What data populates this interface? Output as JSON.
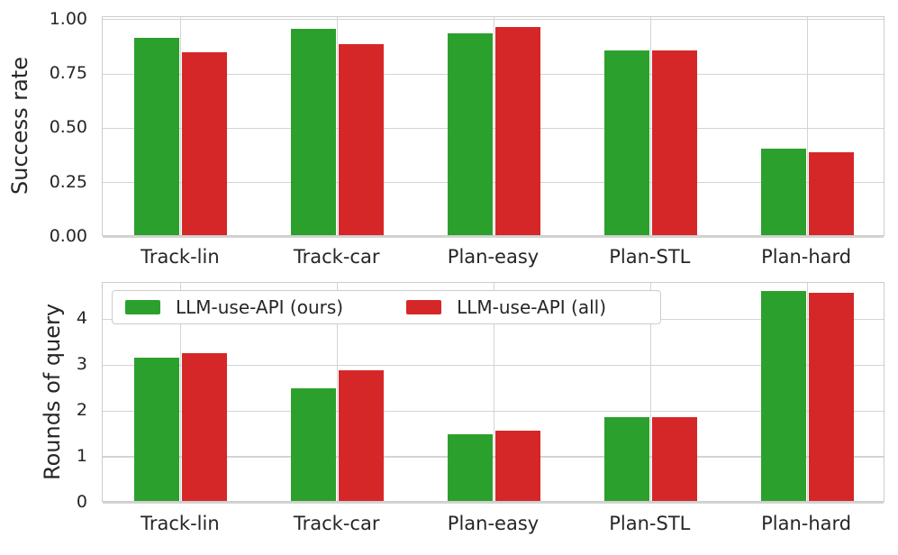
{
  "figure": {
    "background": "#ffffff",
    "text_color": "#262626",
    "grid_color": "#d4d4d4",
    "spine_color": "#cccccc",
    "accent_green": "#2ca02c",
    "accent_red": "#d62728"
  },
  "legend": {
    "items": [
      {
        "label": "LLM-use-API (ours)",
        "color": "#2ca02c"
      },
      {
        "label": "LLM-use-API (all)",
        "color": "#d62728"
      }
    ],
    "position": "upper left of bottom chart, horizontal 2 columns"
  },
  "chart_data": [
    {
      "type": "bar",
      "title": "",
      "xlabel": "",
      "ylabel": "Success rate",
      "categories": [
        "Track-lin",
        "Track-car",
        "Plan-easy",
        "Plan-STL",
        "Plan-hard"
      ],
      "series": [
        {
          "name": "LLM-use-API (ours)",
          "color": "#2ca02c",
          "values": [
            0.91,
            0.95,
            0.93,
            0.85,
            0.4
          ]
        },
        {
          "name": "LLM-use-API (all)",
          "color": "#d62728",
          "values": [
            0.84,
            0.88,
            0.96,
            0.85,
            0.38
          ]
        }
      ],
      "ylim": [
        0,
        1.012
      ],
      "yticks": [
        {
          "value": 0,
          "label": "0.00"
        },
        {
          "value": 0.25,
          "label": "0.25"
        },
        {
          "value": 0.5,
          "label": "0.50"
        },
        {
          "value": 0.75,
          "label": "0.75"
        },
        {
          "value": 1.0,
          "label": "1.00"
        }
      ],
      "grid": true,
      "legend_shown": false
    },
    {
      "type": "bar",
      "title": "",
      "xlabel": "",
      "ylabel": "Rounds of query",
      "categories": [
        "Track-lin",
        "Track-car",
        "Plan-easy",
        "Plan-STL",
        "Plan-hard"
      ],
      "series": [
        {
          "name": "LLM-use-API (ours)",
          "color": "#2ca02c",
          "values": [
            3.12,
            2.45,
            1.45,
            1.83,
            4.57
          ]
        },
        {
          "name": "LLM-use-API (all)",
          "color": "#d62728",
          "values": [
            3.21,
            2.84,
            1.54,
            1.83,
            4.53
          ]
        }
      ],
      "ylim": [
        0,
        4.79
      ],
      "yticks": [
        {
          "value": 0,
          "label": "0"
        },
        {
          "value": 1,
          "label": "1"
        },
        {
          "value": 2,
          "label": "2"
        },
        {
          "value": 3,
          "label": "3"
        },
        {
          "value": 4,
          "label": "4"
        }
      ],
      "grid": true,
      "legend_shown": true
    }
  ]
}
